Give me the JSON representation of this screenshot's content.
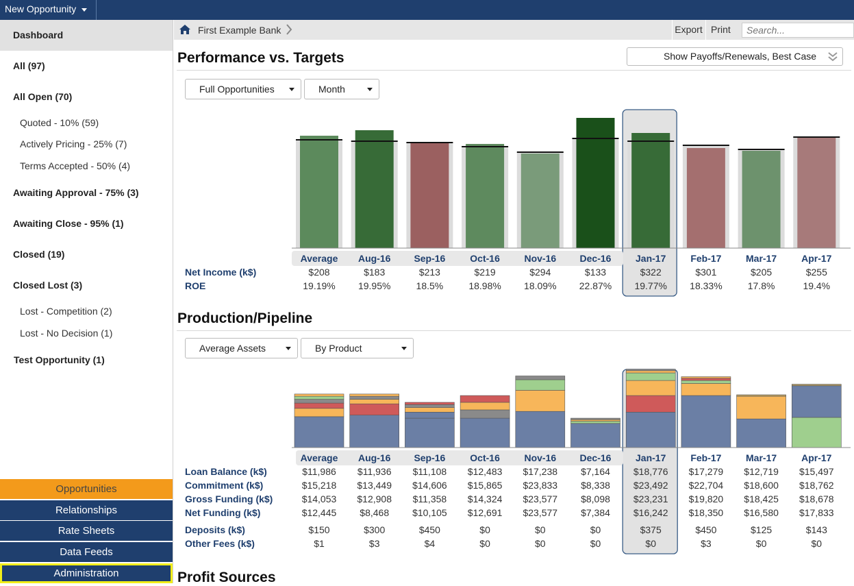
{
  "topbar": {
    "new_opportunity": "New Opportunity"
  },
  "sidebar": {
    "dashboard": "Dashboard",
    "items": [
      {
        "label": "All (97)",
        "level": 0
      },
      {
        "label": "All Open (70)",
        "level": 0
      },
      {
        "label": "Quoted - 10% (59)",
        "level": 1
      },
      {
        "label": "Actively Pricing - 25% (7)",
        "level": 1
      },
      {
        "label": "Terms Accepted - 50% (4)",
        "level": 1
      },
      {
        "label": "Awaiting Approval - 75% (3)",
        "level": 0
      },
      {
        "label": "Awaiting Close - 95% (1)",
        "level": 0
      },
      {
        "label": "Closed (19)",
        "level": 0
      },
      {
        "label": "Closed Lost (3)",
        "level": 0
      },
      {
        "label": "Lost - Competition (2)",
        "level": 1
      },
      {
        "label": "Lost - No Decision (1)",
        "level": 1
      },
      {
        "label": "Test Opportunity (1)",
        "level": 0
      }
    ],
    "bottom": {
      "opportunities": "Opportunities",
      "relationships": "Relationships",
      "rate_sheets": "Rate Sheets",
      "data_feeds": "Data Feeds",
      "administration": "Administration"
    }
  },
  "breadcrumb": {
    "bank": "First Example Bank",
    "export": "Export",
    "print": "Print",
    "search_placeholder": "Search..."
  },
  "performance": {
    "title": "Performance vs. Targets",
    "toggle": "Show Payoffs/Renewals, Best Case",
    "dropdown1": "Full Opportunities",
    "dropdown2": "Month",
    "row_labels": [
      "Net Income (k$)",
      "ROE"
    ]
  },
  "production": {
    "title": "Production/Pipeline",
    "dropdown1": "Average Assets",
    "dropdown2": "By Product",
    "row_labels": [
      "Loan Balance (k$)",
      "Commitment (k$)",
      "Gross Funding (k$)",
      "Net Funding (k$)",
      "Deposits (k$)",
      "Other Fees (k$)"
    ]
  },
  "profit": {
    "title": "Profit Sources"
  },
  "chart_data": [
    {
      "type": "bar",
      "categories": [
        "Average",
        "Aug-16",
        "Sep-16",
        "Oct-16",
        "Nov-16",
        "Dec-16",
        "Jan-17",
        "Feb-17",
        "Mar-17",
        "Apr-17"
      ],
      "highlighted": "Jan-17",
      "target_values": [
        0.79,
        0.78,
        0.77,
        0.74,
        0.7,
        0.8,
        0.78,
        0.75,
        0.72,
        0.81
      ],
      "actual_values": [
        0.82,
        0.86,
        0.77,
        0.76,
        0.69,
        0.95,
        0.84,
        0.73,
        0.71,
        0.81
      ],
      "colors": [
        "#5c8a5c",
        "#376b37",
        "#9b6060",
        "#5e8a5e",
        "#7a9b7a",
        "#1a501a",
        "#376b37",
        "#a46f6f",
        "#6d926d",
        "#a77a7a"
      ],
      "target_line_color": "#111111",
      "background_bar_color": "#dcdcdc",
      "table": {
        "Net Income (k$)": [
          "$208",
          "$183",
          "$213",
          "$219",
          "$294",
          "$133",
          "$322",
          "$301",
          "$205",
          "$255"
        ],
        "ROE": [
          "19.19%",
          "19.95%",
          "18.5%",
          "18.98%",
          "18.09%",
          "22.87%",
          "19.77%",
          "18.33%",
          "17.8%",
          "19.4%"
        ]
      }
    },
    {
      "type": "bar",
      "stacked": true,
      "categories": [
        "Average",
        "Aug-16",
        "Sep-16",
        "Oct-16",
        "Nov-16",
        "Dec-16",
        "Jan-17",
        "Feb-17",
        "Mar-17",
        "Apr-17"
      ],
      "highlighted": "Jan-17",
      "segment_colors": [
        "#6b7fa5",
        "#f7b65a",
        "#cf5a5a",
        "#8a8a8a",
        "#9fcf8e",
        "#4a6680",
        "#b59a60"
      ],
      "stacks": [
        [
          {
            "v": 0.41,
            "c": 0
          },
          {
            "v": 0.11,
            "c": 1
          },
          {
            "v": 0.07,
            "c": 2
          },
          {
            "v": 0.05,
            "c": 3
          },
          {
            "v": 0.04,
            "c": 4
          },
          {
            "v": 0.03,
            "c": 1
          }
        ],
        [
          {
            "v": 0.43,
            "c": 0
          },
          {
            "v": 0.15,
            "c": 2
          },
          {
            "v": 0.06,
            "c": 1
          },
          {
            "v": 0.04,
            "c": 3
          },
          {
            "v": 0.03,
            "c": 1
          }
        ],
        [
          {
            "v": 0.39,
            "c": 0
          },
          {
            "v": 0.08,
            "c": 0
          },
          {
            "v": 0.06,
            "c": 1
          },
          {
            "v": 0.04,
            "c": 3
          },
          {
            "v": 0.03,
            "c": 2
          }
        ],
        [
          {
            "v": 0.39,
            "c": 0
          },
          {
            "v": 0.11,
            "c": 3
          },
          {
            "v": 0.1,
            "c": 1
          },
          {
            "v": 0.09,
            "c": 2
          }
        ],
        [
          {
            "v": 0.48,
            "c": 0
          },
          {
            "v": 0.28,
            "c": 1
          },
          {
            "v": 0.14,
            "c": 4
          },
          {
            "v": 0.05,
            "c": 3
          }
        ],
        [
          {
            "v": 0.32,
            "c": 0
          },
          {
            "v": 0.03,
            "c": 4
          },
          {
            "v": 0.02,
            "c": 1
          },
          {
            "v": 0.02,
            "c": 3
          }
        ],
        [
          {
            "v": 0.47,
            "c": 0
          },
          {
            "v": 0.22,
            "c": 2
          },
          {
            "v": 0.2,
            "c": 1
          },
          {
            "v": 0.1,
            "c": 4
          },
          {
            "v": 0.03,
            "c": 1
          },
          {
            "v": 0.02,
            "c": 3
          }
        ],
        [
          {
            "v": 0.69,
            "c": 0
          },
          {
            "v": 0.16,
            "c": 1
          },
          {
            "v": 0.04,
            "c": 4
          },
          {
            "v": 0.03,
            "c": 2
          },
          {
            "v": 0.02,
            "c": 1
          }
        ],
        [
          {
            "v": 0.38,
            "c": 0
          },
          {
            "v": 0.3,
            "c": 1
          },
          {
            "v": 0.02,
            "c": 6
          }
        ],
        [
          {
            "v": 0.4,
            "c": 4
          },
          {
            "v": 0.42,
            "c": 0
          },
          {
            "v": 0.02,
            "c": 6
          }
        ]
      ],
      "table": {
        "Loan Balance (k$)": [
          "$11,986",
          "$11,936",
          "$11,108",
          "$12,483",
          "$17,238",
          "$7,164",
          "$18,776",
          "$17,279",
          "$12,719",
          "$15,497"
        ],
        "Commitment (k$)": [
          "$15,218",
          "$13,449",
          "$14,606",
          "$15,865",
          "$23,833",
          "$8,338",
          "$23,492",
          "$22,704",
          "$18,600",
          "$18,762"
        ],
        "Gross Funding (k$)": [
          "$14,053",
          "$12,908",
          "$11,358",
          "$14,324",
          "$23,577",
          "$8,098",
          "$23,231",
          "$19,820",
          "$18,425",
          "$18,678"
        ],
        "Net Funding (k$)": [
          "$12,445",
          "$8,468",
          "$10,105",
          "$12,691",
          "$23,577",
          "$7,384",
          "$16,242",
          "$18,350",
          "$16,580",
          "$17,833"
        ],
        "Deposits (k$)": [
          "$150",
          "$300",
          "$450",
          "$0",
          "$0",
          "$0",
          "$375",
          "$450",
          "$125",
          "$143"
        ],
        "Other Fees (k$)": [
          "$1",
          "$3",
          "$4",
          "$0",
          "$0",
          "$0",
          "$0",
          "$3",
          "$0",
          "$0"
        ]
      }
    }
  ]
}
